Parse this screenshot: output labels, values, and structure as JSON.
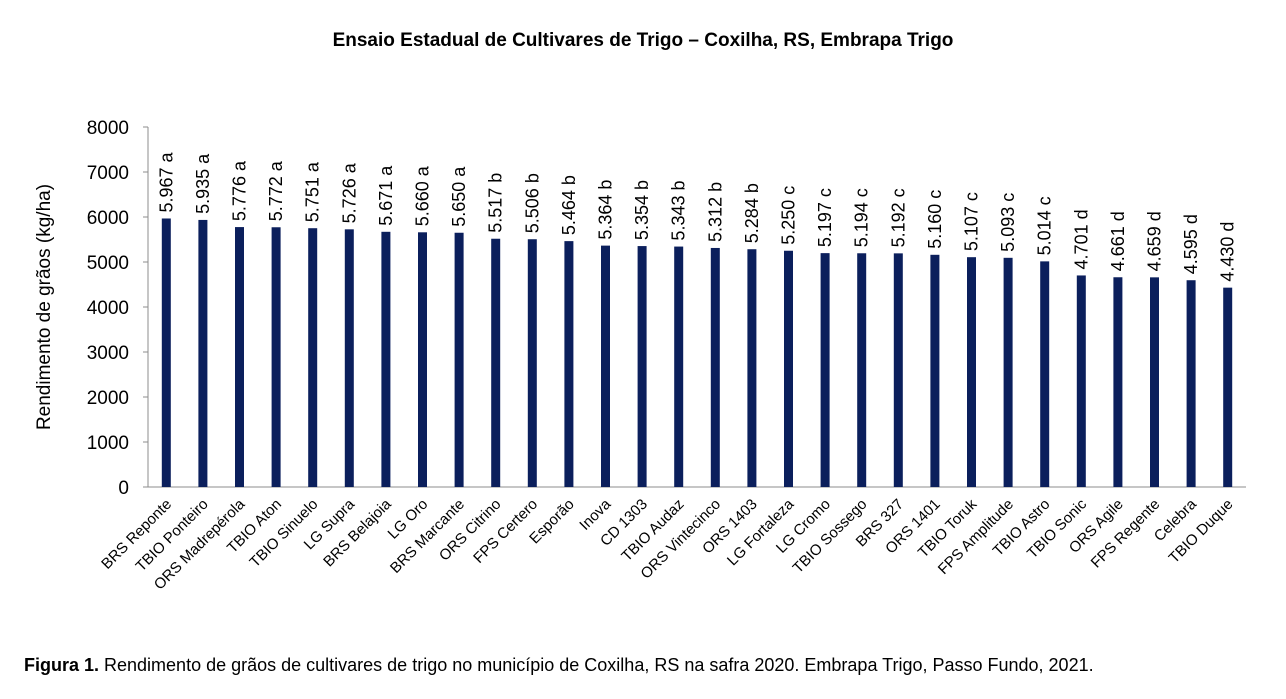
{
  "chart_data": {
    "type": "bar",
    "title": "Ensaio Estadual de Cultivares de Trigo – Coxilha, RS, Embrapa Trigo",
    "xlabel": "",
    "ylabel": "Rendimento de grãos (kg/ha)",
    "ylim": [
      0,
      8000
    ],
    "yticks": [
      "0",
      "1000",
      "2000",
      "3000",
      "4000",
      "5000",
      "6000",
      "7000",
      "8000"
    ],
    "bar_color": "#0b1f5c",
    "grid": false,
    "categories": [
      "BRS Reponte",
      "TBIO Ponteiro",
      "ORS Madrepérola",
      "TBIO Aton",
      "TBIO Sinuelo",
      "LG Supra",
      "BRS Belajoia",
      "LG Oro",
      "BRS Marcante",
      "ORS Citrino",
      "FPS Certero",
      "Esporão",
      "Inova",
      "CD 1303",
      "TBIO Audaz",
      "ORS Vintecinco",
      "ORS 1403",
      "LG Fortaleza",
      "LG Cromo",
      "TBIO Sossego",
      "BRS 327",
      "ORS 1401",
      "TBIO Toruk",
      "FPS Amplitude",
      "TBIO Astro",
      "TBIO Sonic",
      "ORS Agile",
      "FPS Regente",
      "Celebra",
      "TBIO Duque"
    ],
    "values": [
      5967,
      5935,
      5776,
      5772,
      5751,
      5726,
      5671,
      5660,
      5650,
      5517,
      5506,
      5464,
      5364,
      5354,
      5343,
      5312,
      5284,
      5250,
      5197,
      5194,
      5192,
      5160,
      5107,
      5093,
      5014,
      4701,
      4661,
      4659,
      4595,
      4430
    ],
    "data_labels": [
      "5.967 a",
      "5.935 a",
      "5.776 a",
      "5.772 a",
      "5.751 a",
      "5.726 a",
      "5.671 a",
      "5.660 a",
      "5.650 a",
      "5.517 b",
      "5.506 b",
      "5.464 b",
      "5.364 b",
      "5.354 b",
      "5.343 b",
      "5.312 b",
      "5.284 b",
      "5.250 c",
      "5.197 c",
      "5.194 c",
      "5.192 c",
      "5.160 c",
      "5.107 c",
      "5.093 c",
      "5.014 c",
      "4.701 d",
      "4.661 d",
      "4.659 d",
      "4.595 d",
      "4.430 d"
    ]
  },
  "caption": {
    "label": "Figura 1.",
    "text": " Rendimento de grãos de cultivares de trigo no município de Coxilha, RS na safra 2020. Embrapa Trigo, Passo Fundo, 2021."
  }
}
